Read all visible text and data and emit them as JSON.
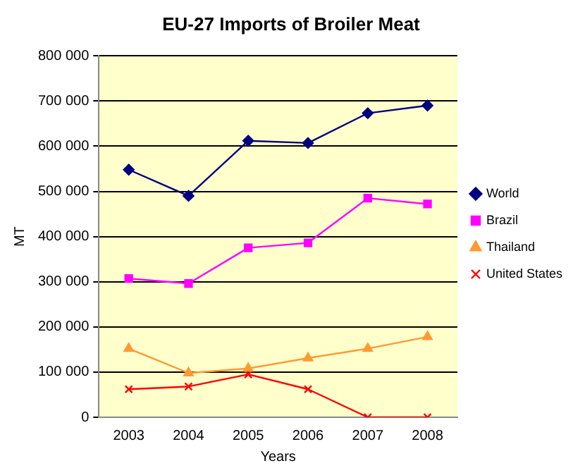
{
  "chart_data": {
    "type": "line",
    "title": "EU-27 Imports of Broiler Meat",
    "xlabel": "Years",
    "ylabel": "MT",
    "categories": [
      "2003",
      "2004",
      "2005",
      "2006",
      "2007",
      "2008"
    ],
    "series": [
      {
        "name": "World",
        "color": "#000080",
        "marker": "diamond",
        "values": [
          548000,
          490000,
          612000,
          607000,
          673000,
          690000
        ]
      },
      {
        "name": "Brazil",
        "color": "#ff00ff",
        "marker": "square",
        "values": [
          307000,
          296000,
          375000,
          386000,
          485000,
          472000
        ]
      },
      {
        "name": "Thailand",
        "color": "#ff9933",
        "marker": "triangle",
        "values": [
          152000,
          98000,
          108000,
          131000,
          152000,
          178000
        ]
      },
      {
        "name": "United States",
        "color": "#ff0000",
        "marker": "cross",
        "values": [
          62000,
          68000,
          95000,
          62000,
          0,
          0
        ]
      }
    ],
    "ylim": [
      0,
      800000
    ],
    "yticks": [
      0,
      {
        "value": 100000,
        "label": "100 000"
      },
      {
        "value": 200000,
        "label": "200 000"
      },
      {
        "value": 300000,
        "label": "300 000"
      },
      {
        "value": 400000,
        "label": "400 000"
      },
      {
        "value": 500000,
        "label": "500 000"
      },
      {
        "value": 600000,
        "label": "600 000"
      },
      {
        "value": 700000,
        "label": "700 000"
      },
      {
        "value": 800000,
        "label": "800 000"
      }
    ],
    "grid": "y",
    "legend": "right",
    "line_style": "solid"
  }
}
